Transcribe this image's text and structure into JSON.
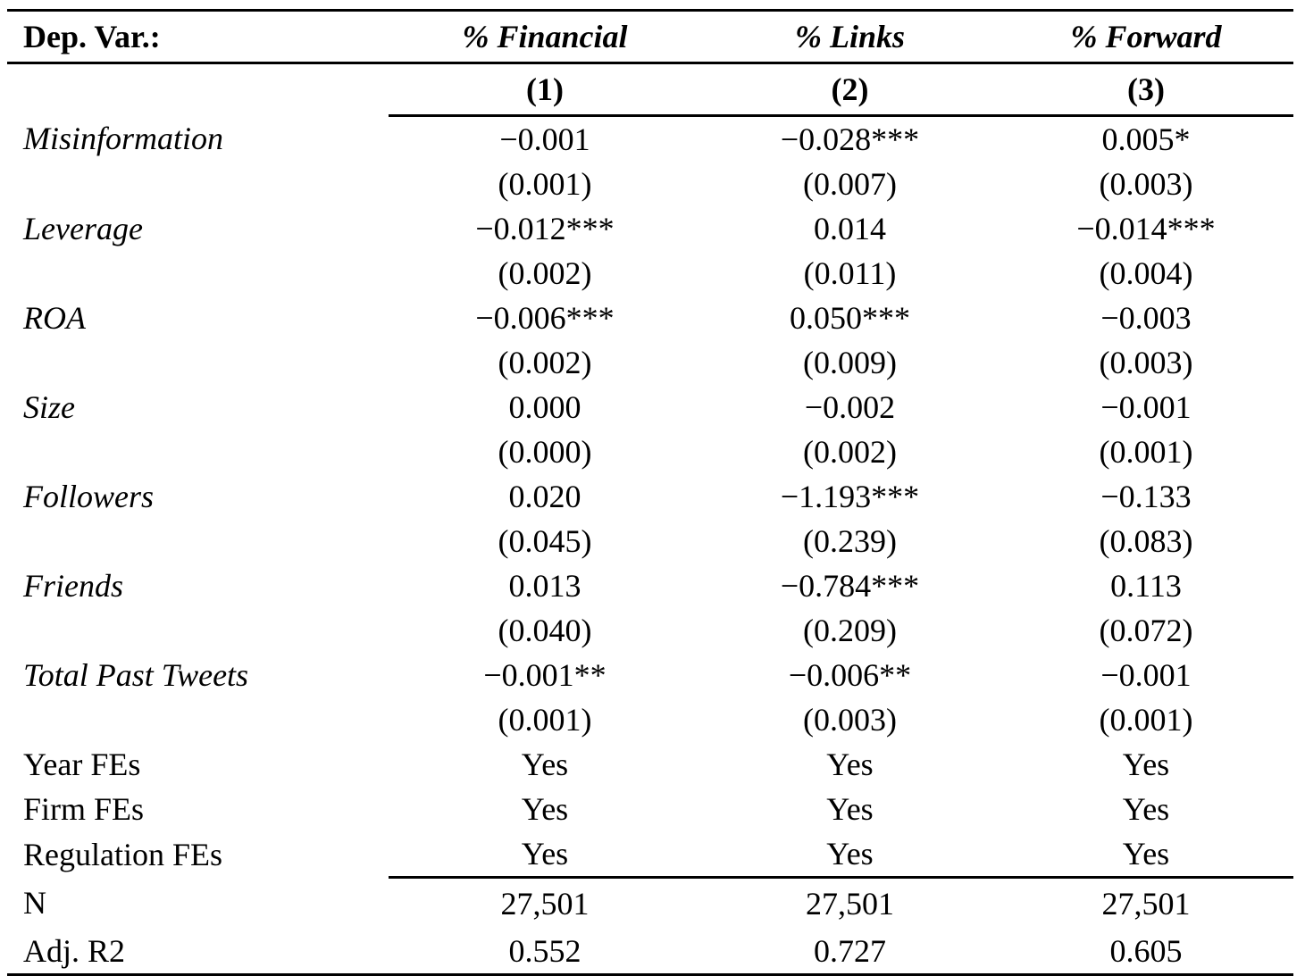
{
  "header": {
    "dep_var_label": "Dep. Var.:",
    "columns": [
      "% Financial",
      "% Links",
      "% Forward"
    ],
    "column_numbers": [
      "(1)",
      "(2)",
      "(3)"
    ]
  },
  "rows": [
    {
      "label": "Misinformation",
      "coef": [
        "−0.001",
        "−0.028***",
        "0.005*"
      ],
      "se": [
        "(0.001)",
        "(0.007)",
        "(0.003)"
      ]
    },
    {
      "label": "Leverage",
      "coef": [
        "−0.012***",
        "0.014",
        "−0.014***"
      ],
      "se": [
        "(0.002)",
        "(0.011)",
        "(0.004)"
      ]
    },
    {
      "label": "ROA",
      "coef": [
        "−0.006***",
        "0.050***",
        "−0.003"
      ],
      "se": [
        "(0.002)",
        "(0.009)",
        "(0.003)"
      ]
    },
    {
      "label": "Size",
      "coef": [
        "0.000",
        "−0.002",
        "−0.001"
      ],
      "se": [
        "(0.000)",
        "(0.002)",
        "(0.001)"
      ]
    },
    {
      "label": "Followers",
      "coef": [
        "0.020",
        "−1.193***",
        "−0.133"
      ],
      "se": [
        "(0.045)",
        "(0.239)",
        "(0.083)"
      ]
    },
    {
      "label": "Friends",
      "coef": [
        "0.013",
        "−0.784***",
        "0.113"
      ],
      "se": [
        "(0.040)",
        "(0.209)",
        "(0.072)"
      ]
    },
    {
      "label": "Total Past Tweets",
      "coef": [
        "−0.001**",
        "−0.006**",
        "−0.001"
      ],
      "se": [
        "(0.001)",
        "(0.003)",
        "(0.001)"
      ]
    }
  ],
  "fixed_effects": [
    {
      "label": "Year FEs",
      "values": [
        "Yes",
        "Yes",
        "Yes"
      ]
    },
    {
      "label": "Firm FEs",
      "values": [
        "Yes",
        "Yes",
        "Yes"
      ]
    },
    {
      "label": "Regulation FEs",
      "values": [
        "Yes",
        "Yes",
        "Yes"
      ]
    }
  ],
  "stats": [
    {
      "label": "N",
      "values": [
        "27,501",
        "27,501",
        "27,501"
      ]
    },
    {
      "label": "Adj. R2",
      "values": [
        "0.552",
        "0.727",
        "0.605"
      ]
    }
  ]
}
